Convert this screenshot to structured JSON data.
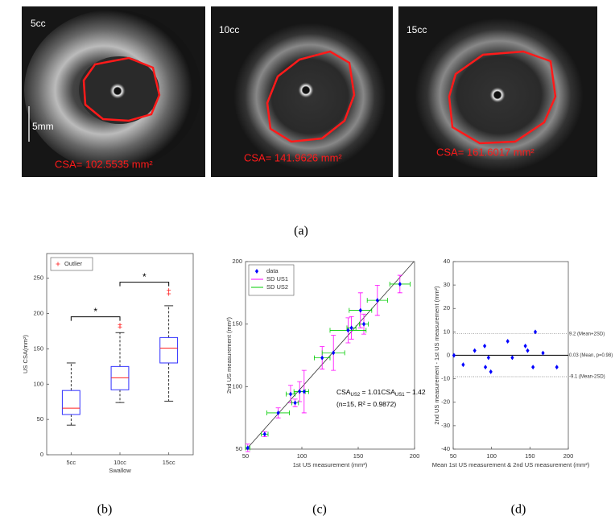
{
  "images": [
    {
      "label": "5cc",
      "scale_bar": "5mm",
      "annotation": "CSA= 102.5535 mm²"
    },
    {
      "label": "10cc",
      "annotation": "CSA= 141.9626 mm²"
    },
    {
      "label": "15cc",
      "annotation": "CSA= 161.6017 mm²"
    }
  ],
  "captions": [
    "(a)",
    "(b)",
    "(c)",
    "(d)"
  ],
  "chart_data": [
    {
      "type": "box",
      "categories": [
        "5cc",
        "10cc",
        "15cc"
      ],
      "xlabel": "Swallow",
      "ylabel": "US CSA(mm²)",
      "ylim": [
        0,
        285
      ],
      "yticks": [
        0,
        50,
        100,
        150,
        200,
        250
      ],
      "color": "#3030ff",
      "median_color": "#ff2020",
      "legend": {
        "name": "Outlier",
        "color": "#ff2020",
        "position": "upper left"
      },
      "boxes": [
        {
          "whislo": 42,
          "q1": 57,
          "med": 66,
          "q3": 91,
          "whishi": 130,
          "fliers": []
        },
        {
          "whislo": 74,
          "q1": 92,
          "med": 109,
          "q3": 125,
          "whishi": 173,
          "fliers": [
            181,
            184
          ]
        },
        {
          "whislo": 76,
          "q1": 130,
          "med": 151,
          "q3": 166,
          "whishi": 211,
          "fliers": [
            228,
            233
          ]
        }
      ],
      "significance": [
        {
          "pair": [
            "5cc",
            "10cc"
          ],
          "label": "*"
        },
        {
          "pair": [
            "10cc",
            "15cc"
          ],
          "label": "*"
        }
      ]
    },
    {
      "type": "scatter",
      "xlabel": "1st US measurement (mm²)",
      "ylabel": "2nd US measurement (mm²)",
      "xlim": [
        50,
        200
      ],
      "ylim": [
        50,
        200
      ],
      "xticks": [
        50,
        100,
        150,
        200
      ],
      "yticks": [
        50,
        100,
        150,
        200
      ],
      "legend": "upper left",
      "series": [
        {
          "name": "data",
          "color": "#0000ff",
          "x": [
            52,
            67,
            79,
            90,
            94,
            98,
            102,
            118,
            128,
            141,
            144,
            152,
            155,
            167,
            187
          ],
          "values": [
            51,
            62,
            79,
            94,
            87,
            96,
            96,
            123,
            127,
            145,
            147,
            161,
            150,
            169,
            182
          ]
        }
      ],
      "error_bars": [
        {
          "name": "SD US1",
          "color": "#ff00ff",
          "direction": "y",
          "values": [
            3,
            2,
            4,
            7,
            3,
            8,
            17,
            9,
            14,
            10,
            9,
            14,
            8,
            12,
            7
          ]
        },
        {
          "name": "SD US2",
          "color": "#00cc00",
          "direction": "x",
          "values": [
            2,
            3,
            10,
            4,
            3,
            5,
            4,
            7,
            10,
            16,
            4,
            10,
            4,
            9,
            9
          ]
        }
      ],
      "fit": {
        "slope": 1.01,
        "intercept": -1.42,
        "color": "#333333"
      },
      "annotation": [
        [
          {
            "text": "CSA"
          },
          {
            "text": "US2",
            "sub": true
          },
          {
            "text": " = 1.01CSA"
          },
          {
            "text": "US1",
            "sub": true
          },
          {
            "text": " – 1.42"
          }
        ],
        [
          {
            "text": "(n=15, R² = 0.9872)"
          }
        ]
      ]
    },
    {
      "type": "scatter",
      "xlabel": "Mean 1st US measurement & 2nd US measurement (mm²)",
      "ylabel": "2nd US measurement - 1st US measurement (mm²)",
      "xlim": [
        50,
        200
      ],
      "ylim": [
        -40,
        40
      ],
      "xticks": [
        50,
        100,
        150,
        200
      ],
      "yticks": [
        -40,
        -30,
        -20,
        -10,
        0,
        10,
        20,
        30,
        40
      ],
      "series": [
        {
          "color": "#0000ff",
          "x": [
            51,
            63,
            78,
            91,
            92,
            96,
            99,
            121,
            127,
            144,
            147,
            154,
            157,
            167,
            185
          ],
          "values": [
            0,
            -4,
            2,
            4,
            -5,
            -1,
            -7,
            6,
            -1,
            4,
            2,
            -5,
            10,
            1,
            -5
          ]
        }
      ],
      "hlines": [
        {
          "value": 9.2,
          "label": "9.2 (Mean+2SD)",
          "style": "dotted"
        },
        {
          "value": 0.03,
          "label": "0.03 (Mean, p=0.98)",
          "style": "solid"
        },
        {
          "value": -9.1,
          "label": "-9.1 (Mean-2SD)",
          "style": "dotted"
        }
      ]
    }
  ]
}
